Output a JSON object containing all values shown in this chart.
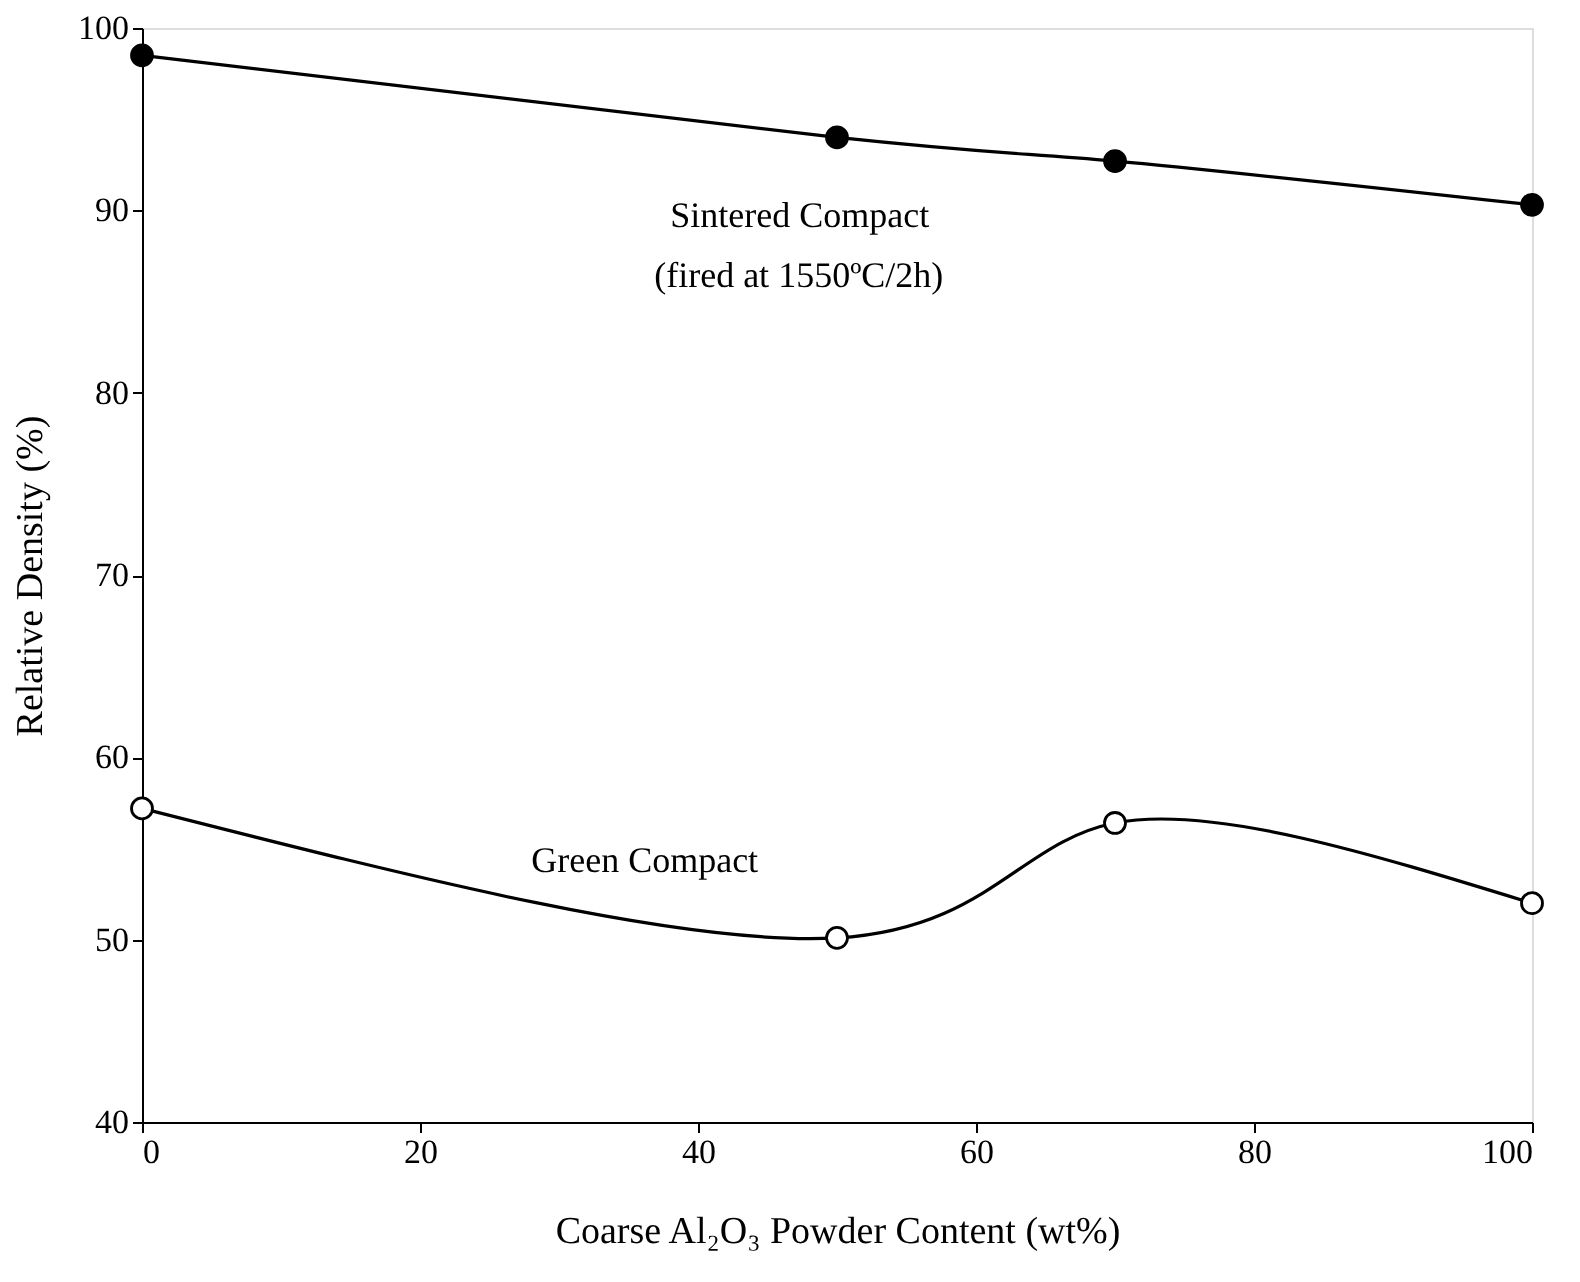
{
  "chart_data": {
    "type": "line",
    "xlabel": "Coarse Al₂O₃ Powder Content (wt%)",
    "ylabel": "Relative Density (%)",
    "x": [
      0,
      50,
      70,
      100
    ],
    "series": [
      {
        "name": "Sintered Compact",
        "color": "#000000",
        "values": [
          98.5,
          94.0,
          92.7,
          90.3
        ]
      },
      {
        "name": "Green Compact",
        "color": "#000000",
        "values": [
          57.2,
          50.1,
          56.4,
          52.0
        ]
      }
    ],
    "annotations": [
      "(fired at 1550ºC/2h)"
    ],
    "xlim": [
      0,
      100
    ],
    "xticks": [
      0,
      20,
      40,
      60,
      80,
      100
    ],
    "ylim": [
      40,
      100
    ],
    "yticks": [
      40,
      50,
      60,
      70,
      80,
      90,
      100
    ],
    "grid": false,
    "marker": "circle"
  }
}
